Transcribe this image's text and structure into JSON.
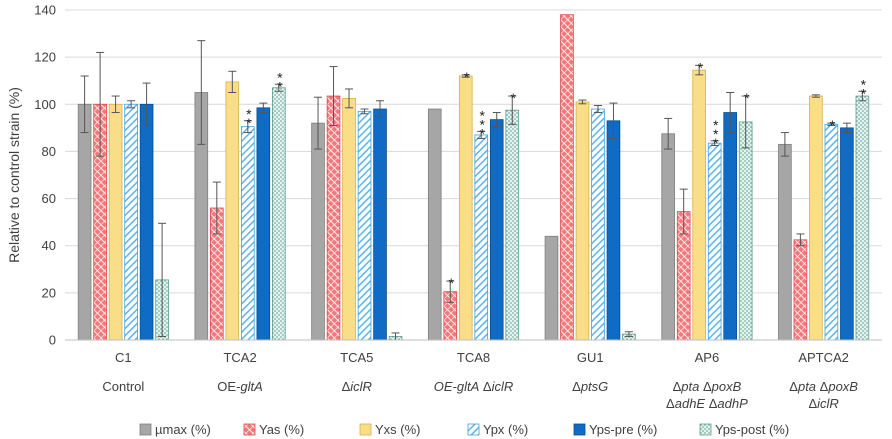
{
  "chart_data": {
    "type": "bar",
    "title": "",
    "xlabel": "",
    "ylabel": "Relative to control strain (%)",
    "ylim": [
      0,
      140
    ],
    "yticks": [
      0,
      20,
      40,
      60,
      80,
      100,
      120,
      140
    ],
    "grid": "horizontal",
    "legend_position": "bottom",
    "categories": [
      {
        "name": "C1",
        "genotype": [
          [
            {
              "t": "Control",
              "i": false
            }
          ]
        ]
      },
      {
        "name": "TCA2",
        "genotype": [
          [
            {
              "t": "OE-",
              "i": false
            },
            {
              "t": "gltA",
              "i": true
            }
          ]
        ]
      },
      {
        "name": "TCA5",
        "genotype": [
          [
            {
              "t": "Δ",
              "i": false
            },
            {
              "t": "iclR",
              "i": true
            }
          ]
        ]
      },
      {
        "name": "TCA8",
        "genotype": [
          [
            {
              "t": "OE-gltA",
              "i": true
            },
            {
              "t": " Δ",
              "i": false
            },
            {
              "t": "iclR",
              "i": true
            }
          ]
        ]
      },
      {
        "name": "GU1",
        "genotype": [
          [
            {
              "t": "Δ",
              "i": false
            },
            {
              "t": "ptsG",
              "i": true
            }
          ]
        ]
      },
      {
        "name": "AP6",
        "genotype": [
          [
            {
              "t": "Δ",
              "i": false
            },
            {
              "t": "pta",
              "i": true
            },
            {
              "t": " Δ",
              "i": false
            },
            {
              "t": "poxB",
              "i": true
            }
          ],
          [
            {
              "t": "Δ",
              "i": false
            },
            {
              "t": "adhE",
              "i": true
            },
            {
              "t": " Δ",
              "i": false
            },
            {
              "t": "adhP",
              "i": true
            }
          ]
        ]
      },
      {
        "name": "APTCA2",
        "genotype": [
          [
            {
              "t": "Δ",
              "i": false
            },
            {
              "t": "pta",
              "i": true
            },
            {
              "t": " Δ",
              "i": false
            },
            {
              "t": "poxB",
              "i": true
            }
          ],
          [
            {
              "t": "Δ",
              "i": false
            },
            {
              "t": "iclR",
              "i": true
            }
          ]
        ]
      }
    ],
    "series": [
      {
        "name": "µmax (%)",
        "pattern": "solid",
        "color": "#A6A6A6",
        "stroke": "#7F7F7F",
        "values": [
          100,
          105,
          92,
          98,
          44,
          87.5,
          83
        ],
        "errors": [
          12,
          22,
          11,
          0,
          0,
          6.5,
          5
        ],
        "significance": [
          "",
          "",
          "",
          "",
          "",
          "",
          ""
        ]
      },
      {
        "name": "Yas (%)",
        "pattern": "diagonal-cross",
        "color": "#F4777A",
        "stroke": "#E0474C",
        "values": [
          100,
          56,
          103.5,
          20.5,
          138,
          54.5,
          42.5
        ],
        "errors": [
          22,
          11,
          12.5,
          4.5,
          0,
          9.5,
          2.5
        ],
        "significance": [
          "",
          "",
          "",
          "*",
          "",
          "",
          ""
        ]
      },
      {
        "name": "Yxs (%)",
        "pattern": "solid",
        "color": "#F9DE87",
        "stroke": "#D7B04A",
        "values": [
          100,
          109.5,
          102.5,
          112,
          101,
          114.5,
          103.5
        ],
        "errors": [
          3.5,
          4.5,
          4,
          0.5,
          0.8,
          2,
          0.5
        ],
        "significance": [
          "",
          "",
          "",
          "*",
          "",
          "*",
          ""
        ]
      },
      {
        "name": "Ypx (%)",
        "pattern": "diagonal-stripes",
        "color": "#5AB4EC",
        "stroke": "#3EA3DF",
        "values": [
          100,
          90.5,
          97,
          87,
          98,
          83.5,
          91.5
        ],
        "errors": [
          1.5,
          2.5,
          1,
          1.5,
          1.5,
          1,
          0.5
        ],
        "significance": [
          "",
          "**",
          "",
          "***",
          "",
          "***",
          "*"
        ]
      },
      {
        "name": "Yps-pre (%)",
        "pattern": "solid",
        "color": "#0F6BC4",
        "stroke": "#0A4E91",
        "values": [
          100,
          98.5,
          98,
          93.5,
          93,
          96.5,
          90
        ],
        "errors": [
          9,
          2,
          3.5,
          3,
          7.5,
          8.5,
          2
        ],
        "significance": [
          "",
          "",
          "",
          "",
          "",
          "",
          ""
        ]
      },
      {
        "name": "Yps-post (%)",
        "pattern": "dots",
        "color": "#CFEAE4",
        "stroke": "#5E9E90",
        "values": [
          25.5,
          107,
          1.5,
          97.5,
          2.5,
          92.5,
          103.5
        ],
        "errors": [
          24,
          1.5,
          1.5,
          6,
          1,
          11,
          2
        ],
        "significance": [
          "",
          "**",
          "",
          "*",
          "",
          "*",
          "**"
        ]
      }
    ]
  }
}
